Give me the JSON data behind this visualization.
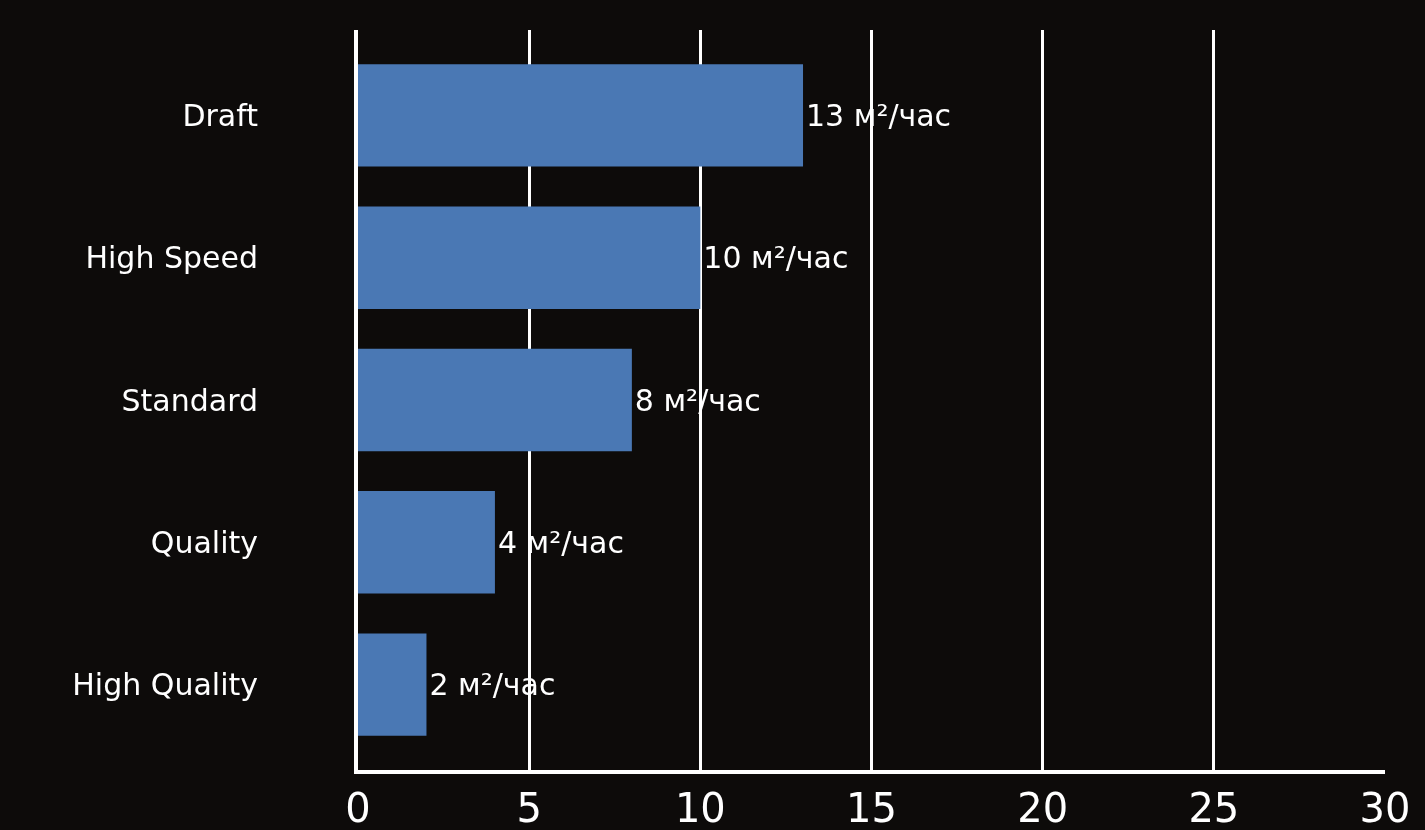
{
  "chart_data": {
    "type": "bar",
    "orientation": "horizontal",
    "categories": [
      "Draft",
      "High Speed",
      "Standard",
      "Quality",
      "High Quality"
    ],
    "values": [
      13,
      10,
      8,
      4,
      2
    ],
    "value_labels": [
      "13 м²/час",
      "10 м²/час",
      "8 м²/час",
      "4 м²/час",
      "2 м²/час"
    ],
    "color": "#4a78b4",
    "xlim": [
      0,
      30
    ],
    "xticks": [
      0,
      5,
      10,
      15,
      20,
      25,
      30
    ],
    "grid": "x"
  }
}
